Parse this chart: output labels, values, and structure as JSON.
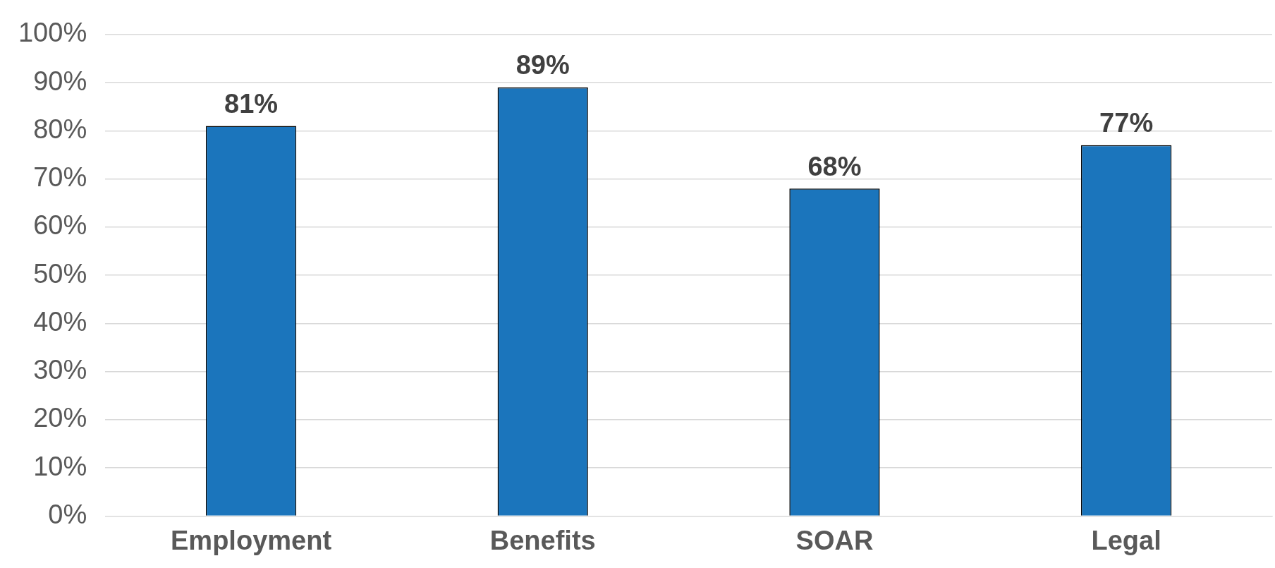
{
  "chart_data": {
    "type": "bar",
    "categories": [
      "Employment",
      "Benefits",
      "SOAR",
      "Legal"
    ],
    "values": [
      81,
      89,
      68,
      77
    ],
    "value_labels": [
      "81%",
      "89%",
      "68%",
      "77%"
    ],
    "color": "#1b75bc",
    "ylim": [
      0,
      100
    ],
    "yticks": [
      {
        "value": 0,
        "label": "0%"
      },
      {
        "value": 10,
        "label": "10%"
      },
      {
        "value": 20,
        "label": "20%"
      },
      {
        "value": 30,
        "label": "30%"
      },
      {
        "value": 40,
        "label": "40%"
      },
      {
        "value": 50,
        "label": "50%"
      },
      {
        "value": 60,
        "label": "60%"
      },
      {
        "value": 70,
        "label": "70%"
      },
      {
        "value": 80,
        "label": "80%"
      },
      {
        "value": 90,
        "label": "90%"
      },
      {
        "value": 100,
        "label": "100%"
      }
    ],
    "grid": "y",
    "legend": false
  }
}
